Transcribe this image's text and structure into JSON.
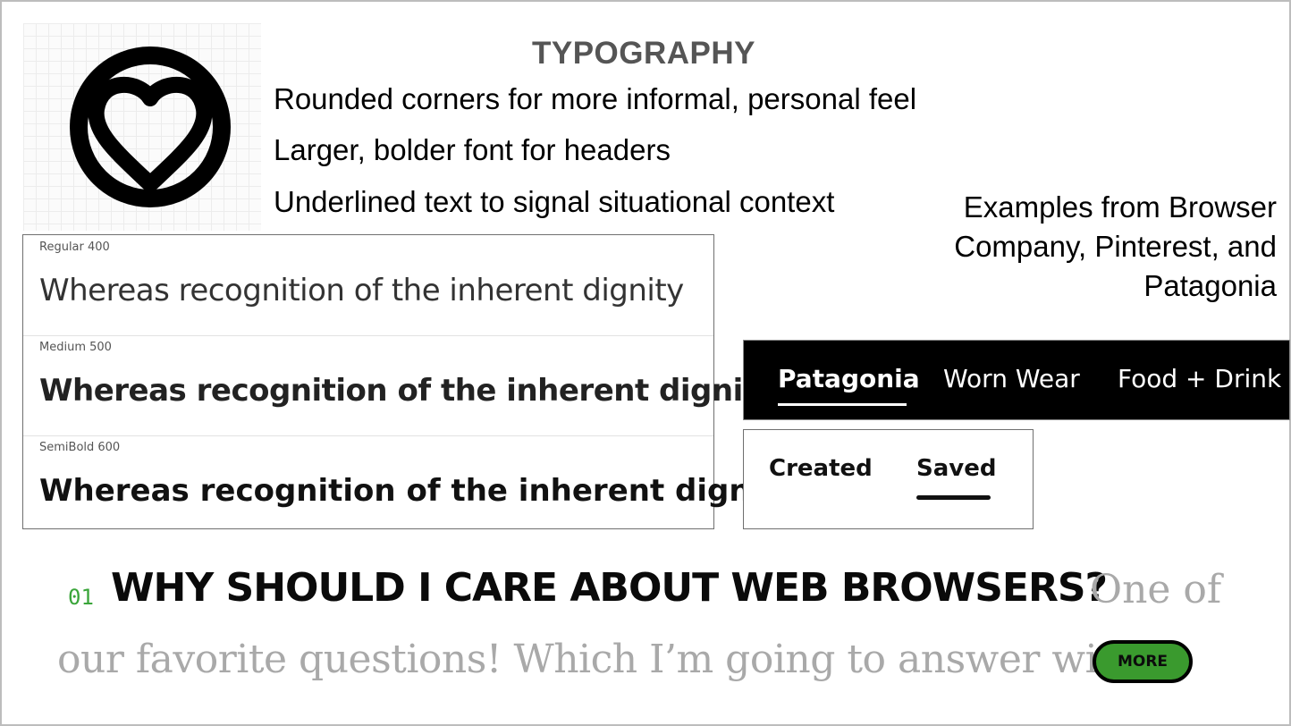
{
  "slide": {
    "title": "TYPOGRAPHY",
    "bullets": [
      "Rounded corners for more informal, personal feel",
      "Larger, bolder font for headers",
      "Underlined text to signal situational context"
    ],
    "examples_note": "Examples from Browser Company, Pinterest, and Patagonia",
    "logo_icon": "heart-in-circle-icon"
  },
  "weights": [
    {
      "label": "Regular 400",
      "sample": "Whereas recognition of the inherent dignity"
    },
    {
      "label": "Medium 500",
      "sample": "Whereas recognition of the inherent dignity"
    },
    {
      "label": "SemiBold 600",
      "sample": "Whereas recognition of the inherent dignity"
    }
  ],
  "patagonia_nav": {
    "items": [
      "Patagonia",
      "Worn Wear",
      "Food + Drink"
    ],
    "active": "Patagonia"
  },
  "pinterest_tabs": {
    "items": [
      "Created",
      "Saved"
    ],
    "active": "Saved"
  },
  "article": {
    "number": "01",
    "heading": "WHY SHOULD I CARE ABOUT WEB BROWSERS?",
    "lead": "One of",
    "continuation": "our favorite questions! Which I’m going to answer with…",
    "more_label": "MORE"
  },
  "colors": {
    "title_gray": "#555555",
    "more_button_green": "#3a9a2e",
    "article_number_green": "#3aa53a",
    "lead_text_gray": "#a9a9a9"
  }
}
